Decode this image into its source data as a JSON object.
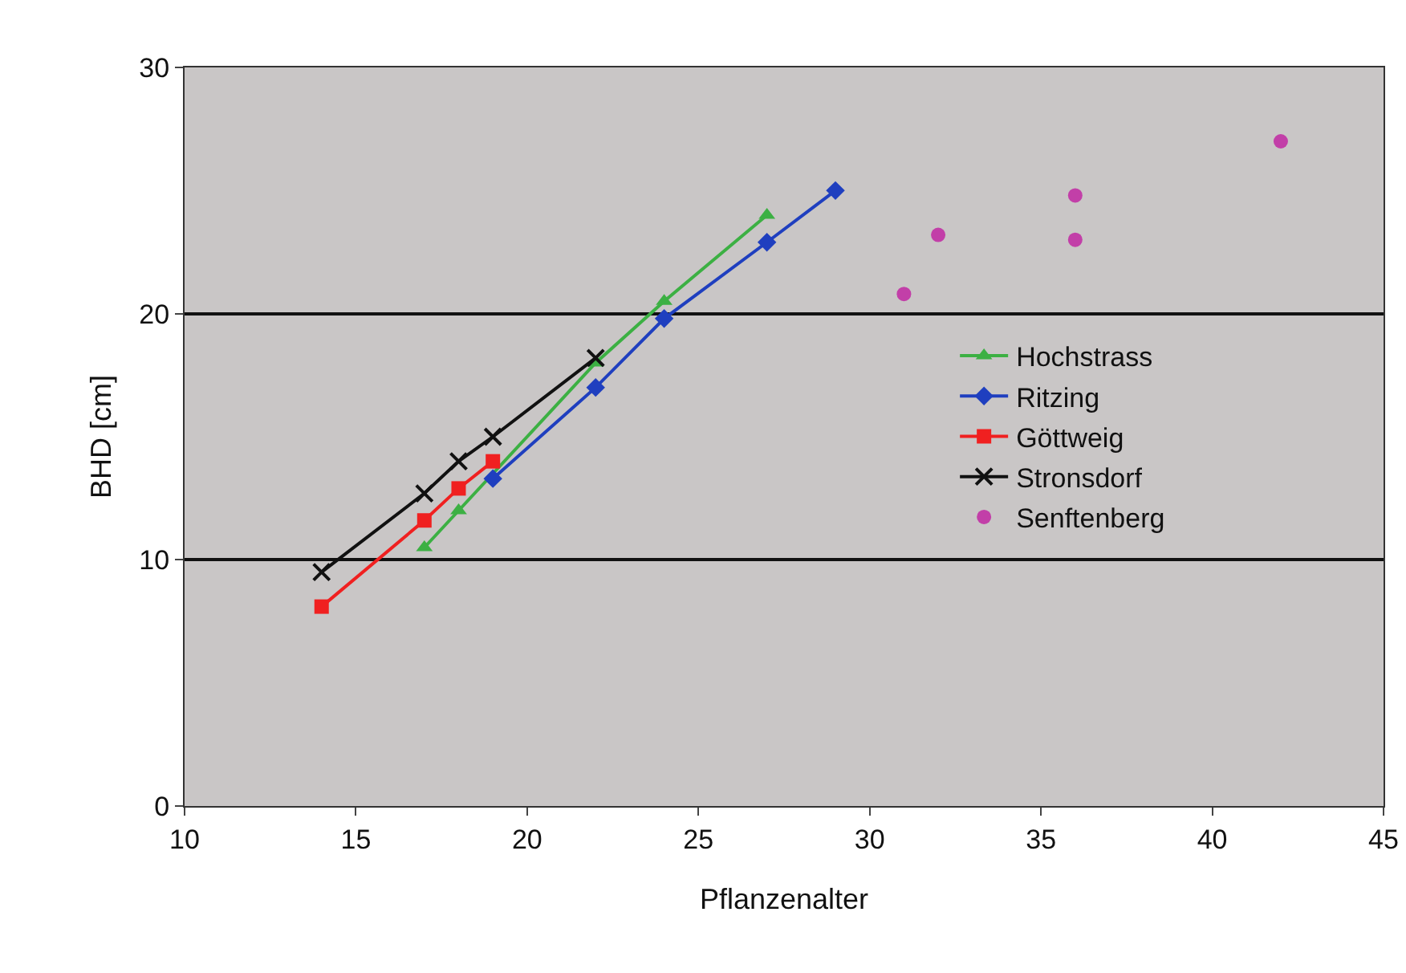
{
  "chart_data": {
    "type": "line",
    "xlabel": "Pflanzenalter",
    "ylabel": "BHD [cm]",
    "xlim": [
      10,
      45
    ],
    "xticks": [
      10,
      15,
      20,
      25,
      30,
      35,
      40,
      45
    ],
    "ylim": [
      0,
      30
    ],
    "yticks": [
      0,
      10,
      20,
      30
    ],
    "grid": "y",
    "legend": "right",
    "series": [
      {
        "name": "Hochstrass",
        "color": "#3cb043",
        "marker": "triangle",
        "x": [
          17,
          18,
          22,
          24,
          27
        ],
        "values": [
          10.5,
          12,
          18,
          20.5,
          24
        ]
      },
      {
        "name": "Ritzing",
        "color": "#1f3fbf",
        "marker": "diamond",
        "x": [
          19,
          22,
          24,
          27,
          29
        ],
        "values": [
          13.3,
          17,
          19.8,
          22.9,
          25
        ]
      },
      {
        "name": "Göttweig",
        "color": "#f02020",
        "marker": "square",
        "x": [
          14,
          17,
          18,
          19
        ],
        "values": [
          8.1,
          11.6,
          12.9,
          14
        ]
      },
      {
        "name": "Stronsdorf",
        "color": "#111111",
        "marker": "cross",
        "x": [
          14,
          17,
          18,
          19,
          22
        ],
        "values": [
          9.5,
          12.7,
          14,
          15,
          18.2
        ]
      },
      {
        "name": "Senftenberg",
        "color": "#c23fa8",
        "type": "scatter",
        "marker": "circle",
        "x": [
          31,
          32,
          36,
          36,
          42
        ],
        "values": [
          20.8,
          23.2,
          24.8,
          23,
          27
        ]
      }
    ]
  }
}
